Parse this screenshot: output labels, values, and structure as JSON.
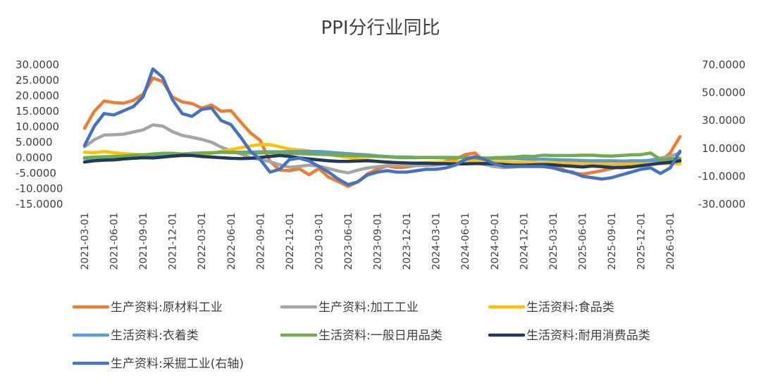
{
  "chart_data": {
    "type": "line",
    "title": "PPI分行业同比",
    "x_ticks": [
      "2021-03-01",
      "2021-06-01",
      "2021-09-01",
      "2021-12-01",
      "2022-03-01",
      "2022-06-01",
      "2022-09-01",
      "2022-12-01",
      "2023-03-01",
      "2023-06-01",
      "2023-09-01",
      "2023-12-01",
      "2024-03-01",
      "2024-06-01",
      "2024-09-01",
      "2024-12-01",
      "2025-03-01",
      "2025-06-01",
      "2025-09-01",
      "2025-12-01",
      "2026-03-01"
    ],
    "y_left": {
      "min": -15,
      "max": 30,
      "step": 5,
      "tick_labels": [
        "30.0000",
        "25.0000",
        "20.0000",
        "15.0000",
        "10.0000",
        "5.0000",
        "0.0000",
        "-5.0000",
        "-10.0000",
        "-15.0000"
      ]
    },
    "y_right": {
      "min": -30,
      "max": 70,
      "step": 20,
      "tick_labels": [
        "70.0000",
        "50.0000",
        "30.0000",
        "10.0000",
        "-10.0000",
        "-30.0000"
      ]
    },
    "grid": false,
    "legend_position": "bottom",
    "x": [
      "2021-03",
      "2021-04",
      "2021-05",
      "2021-06",
      "2021-07",
      "2021-08",
      "2021-09",
      "2021-10",
      "2021-11",
      "2021-12",
      "2022-01",
      "2022-02",
      "2022-03",
      "2022-04",
      "2022-05",
      "2022-06",
      "2022-07",
      "2022-08",
      "2022-09",
      "2022-10",
      "2022-11",
      "2022-12",
      "2023-01",
      "2023-02",
      "2023-03",
      "2023-04",
      "2023-05",
      "2023-06",
      "2023-07",
      "2023-08",
      "2023-09",
      "2023-10",
      "2023-11",
      "2023-12",
      "2024-01",
      "2024-02",
      "2024-03",
      "2024-04",
      "2024-05",
      "2024-06",
      "2024-07",
      "2024-08",
      "2024-09",
      "2024-10",
      "2024-11",
      "2024-12",
      "2025-01",
      "2025-02",
      "2025-03",
      "2025-04",
      "2025-05",
      "2025-06",
      "2025-07",
      "2025-08",
      "2025-09",
      "2025-10",
      "2025-11",
      "2025-12",
      "2026-01",
      "2026-02",
      "2026-03",
      "2026-04"
    ],
    "series": [
      {
        "name": "生产资料:原材料工业",
        "color": "#ED7D31",
        "axis": "left",
        "values": [
          9.5,
          15.0,
          18.3,
          17.8,
          17.6,
          18.5,
          20.5,
          25.7,
          24.6,
          19.6,
          18.0,
          17.5,
          16.0,
          17.0,
          15.0,
          15.2,
          11.5,
          8.0,
          5.6,
          -1.2,
          -4.0,
          -4.2,
          -3.6,
          -5.5,
          -3.5,
          -6.3,
          -7.7,
          -9.3,
          -7.8,
          -5.2,
          -3.7,
          -2.7,
          -3.2,
          -3.0,
          -2.5,
          -2.5,
          -2.2,
          -1.2,
          -0.5,
          1.0,
          1.5,
          -1.2,
          -2.6,
          -3.2,
          -2.8,
          -2.6,
          -2.5,
          -2.9,
          -3.1,
          -3.8,
          -5.0,
          -5.3,
          -4.8,
          -4.2,
          -3.5,
          -2.8,
          -2.5,
          -2.2,
          -1.6,
          -1.1,
          1.5,
          6.8
        ]
      },
      {
        "name": "生产资料:加工工业",
        "color": "#A5A5A5",
        "axis": "left",
        "values": [
          3.5,
          5.8,
          7.3,
          7.4,
          7.6,
          8.3,
          9.0,
          10.6,
          10.2,
          8.4,
          7.2,
          6.6,
          5.9,
          5.0,
          3.4,
          2.2,
          1.2,
          0.0,
          -0.6,
          -1.3,
          -2.3,
          -3.1,
          -2.8,
          -2.4,
          -2.7,
          -3.5,
          -4.3,
          -4.9,
          -4.0,
          -3.3,
          -2.9,
          -2.6,
          -2.4,
          -2.4,
          -2.5,
          -2.5,
          -2.4,
          -2.0,
          -1.8,
          -1.5,
          -1.6,
          -2.2,
          -2.9,
          -3.2,
          -3.0,
          -2.6,
          -2.5,
          -2.7,
          -2.6,
          -2.5,
          -2.5,
          -2.5,
          -2.5,
          -2.4,
          -2.2,
          -2.0,
          -1.7,
          -1.2,
          -0.7,
          -0.1,
          0.5,
          1.5
        ]
      },
      {
        "name": "生活资料:食品类",
        "color": "#FFC000",
        "axis": "left",
        "values": [
          1.8,
          1.6,
          2.0,
          1.6,
          1.3,
          1.1,
          1.0,
          0.8,
          0.5,
          0.4,
          0.6,
          0.7,
          0.9,
          1.4,
          2.0,
          2.6,
          3.2,
          3.8,
          4.3,
          4.2,
          3.5,
          2.8,
          2.5,
          2.2,
          1.5,
          1.0,
          0.5,
          0.1,
          -0.5,
          -0.7,
          -1.2,
          -1.6,
          -1.8,
          -1.8,
          -1.7,
          -1.6,
          -1.5,
          -1.4,
          -1.3,
          -1.1,
          -1.0,
          -1.0,
          -1.3,
          -1.4,
          -1.5,
          -1.5,
          -1.6,
          -1.7,
          -1.6,
          -1.6,
          -1.7,
          -1.8,
          -1.8,
          -1.8,
          -1.8,
          -1.9,
          -1.9,
          -1.9,
          -1.9,
          -1.9,
          -1.9,
          -1.9
        ]
      },
      {
        "name": "生活资料:衣着类",
        "color": "#5B9BD5",
        "axis": "left",
        "values": [
          -0.3,
          -0.2,
          -0.1,
          0.0,
          0.2,
          0.3,
          0.4,
          0.6,
          0.8,
          1.0,
          1.2,
          1.4,
          1.5,
          1.6,
          1.7,
          1.7,
          1.8,
          1.8,
          1.9,
          1.9,
          1.9,
          2.0,
          2.0,
          2.0,
          2.0,
          1.8,
          1.5,
          1.3,
          1.1,
          0.9,
          0.6,
          0.4,
          0.2,
          0.2,
          0.1,
          0.1,
          0.1,
          0.1,
          0.1,
          0.1,
          0.0,
          -0.1,
          -0.2,
          -0.3,
          -0.3,
          -0.4,
          -0.5,
          -0.5,
          -0.6,
          -0.7,
          -0.8,
          -0.9,
          -1.0,
          -1.0,
          -1.0,
          -1.1,
          -1.0,
          -1.0,
          -0.9,
          -0.8,
          -0.6,
          -0.4
        ]
      },
      {
        "name": "生活资料:一般日用品类",
        "color": "#70AD47",
        "axis": "left",
        "values": [
          0.0,
          0.2,
          0.3,
          0.4,
          0.5,
          0.8,
          0.9,
          1.2,
          1.4,
          1.4,
          1.2,
          1.3,
          1.5,
          1.6,
          1.8,
          1.7,
          1.6,
          1.5,
          1.5,
          1.6,
          1.5,
          1.4,
          1.3,
          1.2,
          1.1,
          1.0,
          0.8,
          0.7,
          0.6,
          0.5,
          0.4,
          0.3,
          0.1,
          0.0,
          0.0,
          0.1,
          0.0,
          -0.1,
          0.0,
          0.0,
          -0.1,
          -0.2,
          0.0,
          0.1,
          0.2,
          0.5,
          0.4,
          0.8,
          0.7,
          0.7,
          0.7,
          0.8,
          0.8,
          0.6,
          0.5,
          0.7,
          0.9,
          1.0,
          1.5,
          -0.6,
          -0.4,
          -0.2
        ]
      },
      {
        "name": "生活资料:耐用消费品类",
        "color": "#203864",
        "axis": "left",
        "values": [
          -1.4,
          -1.0,
          -0.8,
          -0.7,
          -0.4,
          -0.2,
          0.0,
          -0.1,
          0.2,
          0.5,
          0.8,
          0.7,
          0.4,
          0.2,
          0.0,
          -0.2,
          -0.3,
          -0.2,
          0.1,
          0.4,
          0.7,
          0.4,
          -0.1,
          -0.4,
          -0.7,
          -1.0,
          -1.2,
          -1.2,
          -1.1,
          -1.0,
          -1.2,
          -1.4,
          -1.6,
          -1.7,
          -1.8,
          -1.8,
          -1.9,
          -1.9,
          -2.0,
          -2.0,
          -1.9,
          -1.9,
          -2.0,
          -2.2,
          -2.4,
          -2.4,
          -2.3,
          -2.2,
          -2.3,
          -2.6,
          -2.8,
          -3.0,
          -2.7,
          -2.9,
          -3.2,
          -3.2,
          -3.0,
          -2.6,
          -2.2,
          -1.8,
          -1.5,
          -1.0
        ]
      },
      {
        "name": "生产资料:采掘工业(右轴)",
        "color": "#4472C4",
        "axis": "right",
        "values": [
          12,
          26,
          35,
          34,
          37,
          40,
          47,
          67,
          61,
          45,
          35,
          33,
          38,
          39,
          30,
          27,
          18,
          8,
          2,
          -7,
          -5,
          2,
          3,
          1,
          -3,
          -7,
          -12,
          -16,
          -14,
          -9,
          -7,
          -6,
          -7,
          -7,
          -6,
          -5,
          -5,
          -4,
          -2,
          2,
          4,
          2,
          -1,
          -3,
          -3,
          -3,
          -3,
          -3,
          -4,
          -6,
          -7,
          -10,
          -11,
          -12,
          -11,
          -9,
          -7,
          -5,
          -4,
          -8,
          -4,
          8
        ]
      }
    ]
  }
}
